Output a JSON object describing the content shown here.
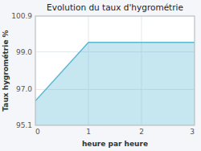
{
  "chart_data": {
    "type": "area",
    "title": "Evolution du taux d'hygrométrie",
    "xlabel": "heure par heure",
    "ylabel": "Taux hygrométrie %",
    "x": [
      0,
      1,
      2,
      3
    ],
    "values": [
      96.4,
      99.5,
      99.5,
      99.5
    ],
    "color": "#5bb8d4",
    "xlim": [
      0,
      3
    ],
    "ylim": [
      95.1,
      100.9
    ],
    "xticks": [
      0,
      1,
      2,
      3
    ],
    "yticks": [
      95.1,
      {
        "value": 97.0,
        "label": "97.0"
      },
      {
        "value": 99.0,
        "label": "99.0"
      },
      100.9
    ],
    "grid": true
  }
}
